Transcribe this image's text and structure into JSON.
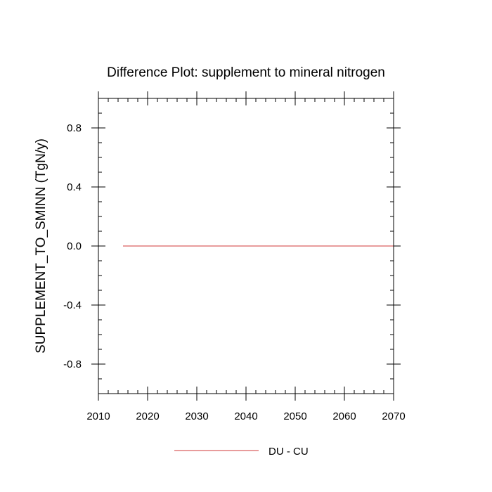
{
  "chart_data": {
    "type": "line",
    "title": "Difference Plot: supplement to mineral nitrogen",
    "xlabel": "",
    "ylabel": "SUPPLEMENT_TO_SMINN  (TgN/y)",
    "xlim": [
      2010,
      2070
    ],
    "ylim": [
      -1.0,
      1.0
    ],
    "x_major_ticks": [
      2010,
      2020,
      2030,
      2040,
      2050,
      2060,
      2070
    ],
    "x_tick_labels": [
      "2010",
      "2020",
      "2030",
      "2040",
      "2050",
      "2060",
      "2070"
    ],
    "y_major_ticks": [
      0.8,
      0.4,
      0.0,
      -0.4,
      -0.8
    ],
    "y_tick_labels": [
      "0.8",
      "0.4",
      "0.0",
      "-0.4",
      "-0.8"
    ],
    "x_minor_step": 2,
    "y_minor_step": 0.1,
    "grid": false,
    "legend_position": "bottom-center",
    "series": [
      {
        "name": "DU - CU",
        "color": "#e07b7b",
        "x": [
          2015,
          2020,
          2030,
          2040,
          2050,
          2060,
          2070
        ],
        "y": [
          0.0,
          0.0,
          0.0,
          0.0,
          0.0,
          0.0,
          0.0
        ]
      }
    ]
  }
}
